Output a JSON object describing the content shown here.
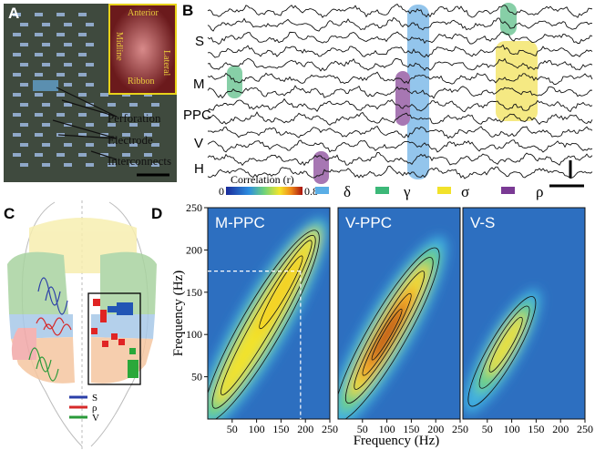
{
  "panel_a": {
    "label": "A",
    "inset_labels": [
      "Anterior",
      "Midline",
      "Lateral",
      "Ribbon"
    ],
    "callouts": [
      "Perforation",
      "Electrode",
      "Interconnects"
    ]
  },
  "panel_b": {
    "label": "B",
    "channels": [
      "S",
      "M",
      "PPC",
      "V",
      "H"
    ],
    "colorbar": {
      "title": "Correlation (r)",
      "min": 0,
      "max": 0.8
    },
    "bands": [
      "δ",
      "γ",
      "σ",
      "ρ"
    ]
  },
  "panel_c": {
    "label": "C",
    "legend": [
      "S",
      "ρ",
      "V"
    ]
  },
  "panel_d": {
    "label": "D",
    "x_label": "Frequency (Hz)",
    "y_label": "Frequency (Hz)",
    "xlim": [
      0,
      250
    ],
    "ylim": [
      0,
      250
    ],
    "xticks": [
      50,
      100,
      150,
      200,
      250
    ],
    "yticks": [
      50,
      100,
      150,
      200,
      250
    ],
    "plots": [
      "M-PPC",
      "V-PPC",
      "V-S"
    ]
  }
}
